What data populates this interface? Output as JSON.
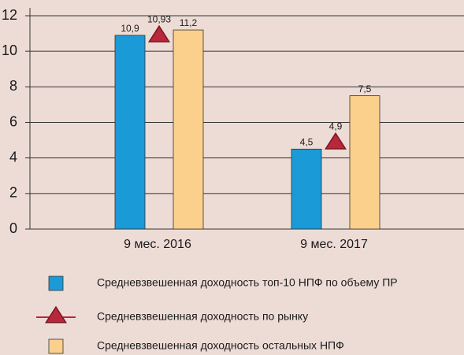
{
  "chart_data": {
    "type": "bar",
    "categories": [
      "9 мес. 2016",
      "9 мес. 2017"
    ],
    "series": [
      {
        "name": "Средневзвешенная доходность топ-10 НПФ по объему ПР",
        "color": "#1a9ad6",
        "values": [
          10.9,
          4.5
        ],
        "value_labels": [
          "10,9",
          "4,5"
        ]
      },
      {
        "name": "Средневзвешенная доходность по рынку",
        "color": "#b8283a",
        "marker": "triangle",
        "values": [
          10.93,
          4.9
        ],
        "value_labels": [
          "10,93",
          "4,9"
        ]
      },
      {
        "name": "Средневзвешенная доходность остальных НПФ",
        "color": "#fbd08d",
        "values": [
          11.2,
          7.5
        ],
        "value_labels": [
          "11,2",
          "7,5"
        ]
      }
    ],
    "ylim": [
      0,
      12
    ],
    "yticks": [
      0,
      2,
      4,
      6,
      8,
      10,
      12
    ],
    "grid": true
  }
}
